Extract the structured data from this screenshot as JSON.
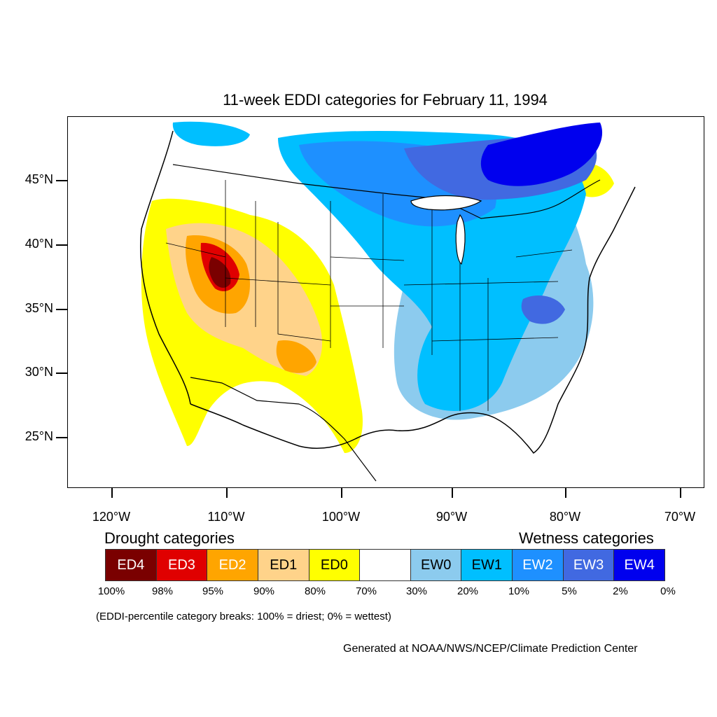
{
  "title": "11-week EDDI categories for February 11, 1994",
  "lat_labels": [
    "45°N",
    "40°N",
    "35°N",
    "30°N",
    "25°N"
  ],
  "lon_labels": [
    "120°W",
    "110°W",
    "100°W",
    "90°W",
    "80°W",
    "70°W"
  ],
  "legend": {
    "drought_title": "Drought categories",
    "wetness_title": "Wetness categories",
    "categories": [
      {
        "label": "ED4",
        "color": "#7a0000",
        "text_color": "#ffffff"
      },
      {
        "label": "ED3",
        "color": "#e00000",
        "text_color": "#ffffff"
      },
      {
        "label": "ED2",
        "color": "#ffa500",
        "text_color": "#ffffff"
      },
      {
        "label": "ED1",
        "color": "#ffd38a",
        "text_color": "#000000"
      },
      {
        "label": "ED0",
        "color": "#ffff00",
        "text_color": "#000000"
      },
      {
        "label": "",
        "color": "#ffffff",
        "text_color": "#000000"
      },
      {
        "label": "EW0",
        "color": "#8ccbee",
        "text_color": "#000000"
      },
      {
        "label": "EW1",
        "color": "#00bfff",
        "text_color": "#000000"
      },
      {
        "label": "EW2",
        "color": "#1e90ff",
        "text_color": "#ffffff"
      },
      {
        "label": "EW3",
        "color": "#4169e1",
        "text_color": "#ffffff"
      },
      {
        "label": "EW4",
        "color": "#0000ee",
        "text_color": "#ffffff"
      }
    ],
    "percent_breaks": [
      "100%",
      "98%",
      "95%",
      "90%",
      "80%",
      "70%",
      "30%",
      "20%",
      "10%",
      "5%",
      "2%",
      "0%"
    ]
  },
  "note": "(EDDI-percentile category breaks: 100% = driest; 0% = wettest)",
  "credit": "Generated at NOAA/NWS/NCEP/Climate Prediction Center"
}
